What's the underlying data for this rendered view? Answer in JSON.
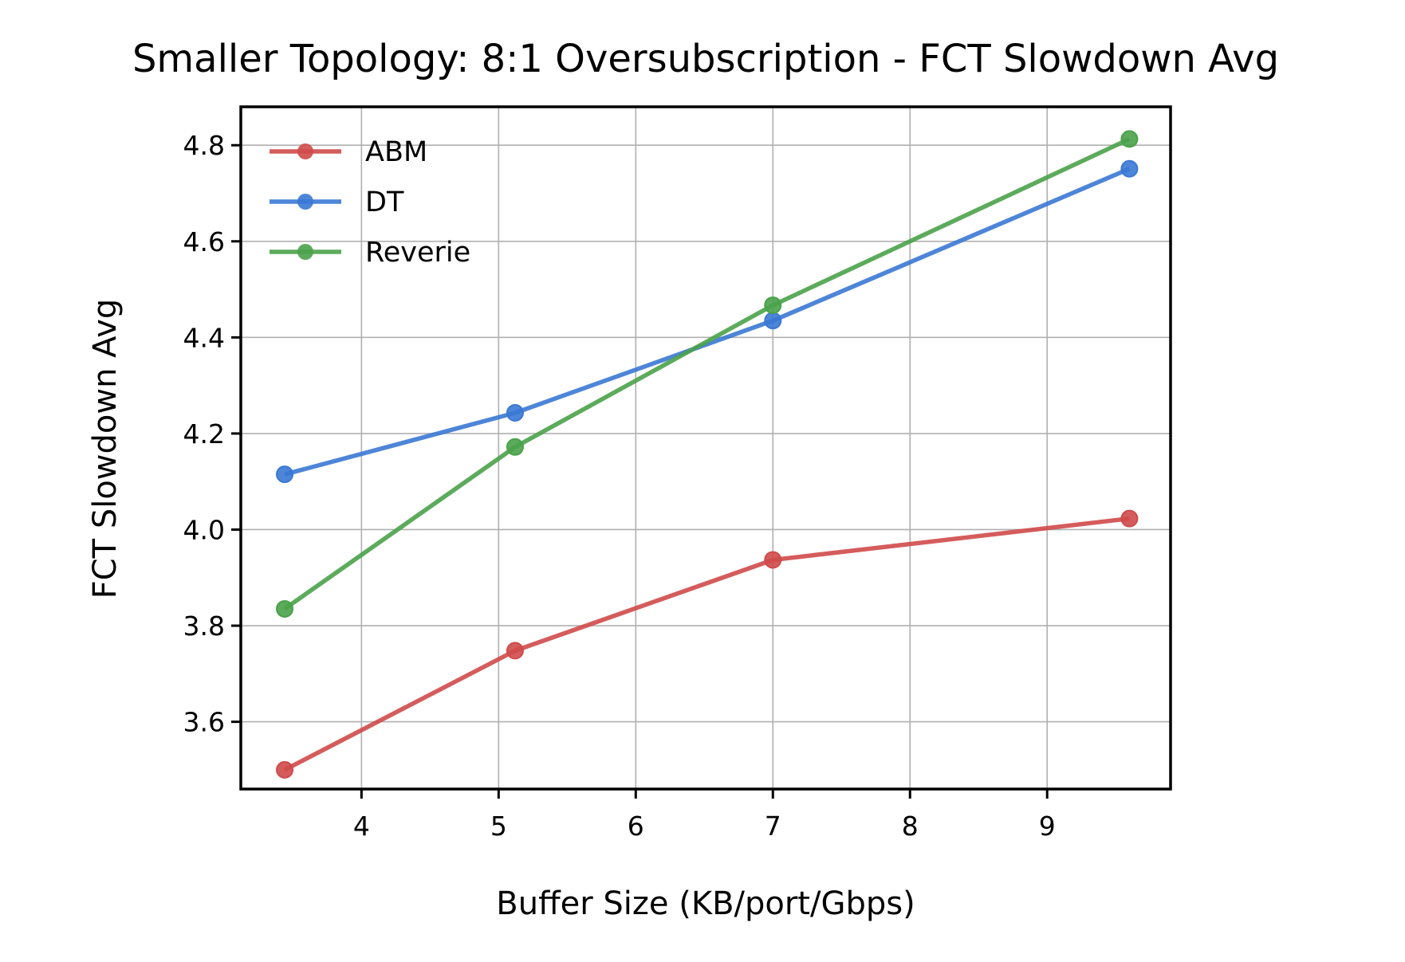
{
  "chart_data": {
    "type": "line",
    "title": "Smaller Topology: 8:1 Oversubscription - FCT Slowdown Avg",
    "xlabel": "Buffer Size (KB/port/Gbps)",
    "ylabel": "FCT Slowdown Avg",
    "xlim": [
      3.12,
      9.9
    ],
    "ylim": [
      3.46,
      4.88
    ],
    "xticks": [
      4,
      5,
      6,
      7,
      8,
      9
    ],
    "xtick_labels": [
      "4",
      "5",
      "6",
      "7",
      "8",
      "9"
    ],
    "yticks": [
      3.6,
      3.8,
      4.0,
      4.2,
      4.4,
      4.6,
      4.8
    ],
    "ytick_labels": [
      "3.6",
      "3.8",
      "4.0",
      "4.2",
      "4.4",
      "4.6",
      "4.8"
    ],
    "grid": true,
    "legend_position": "upper-left",
    "x": [
      3.44,
      5.12,
      7.0,
      9.6
    ],
    "series": [
      {
        "name": "ABM",
        "color": "#d04a4a",
        "values": [
          3.5,
          3.748,
          3.937,
          4.023
        ]
      },
      {
        "name": "DT",
        "color": "#3a78d4",
        "values": [
          4.115,
          4.243,
          4.435,
          4.751
        ]
      },
      {
        "name": "Reverie",
        "color": "#4aa24a",
        "values": [
          3.835,
          4.172,
          4.467,
          4.813
        ]
      }
    ]
  }
}
